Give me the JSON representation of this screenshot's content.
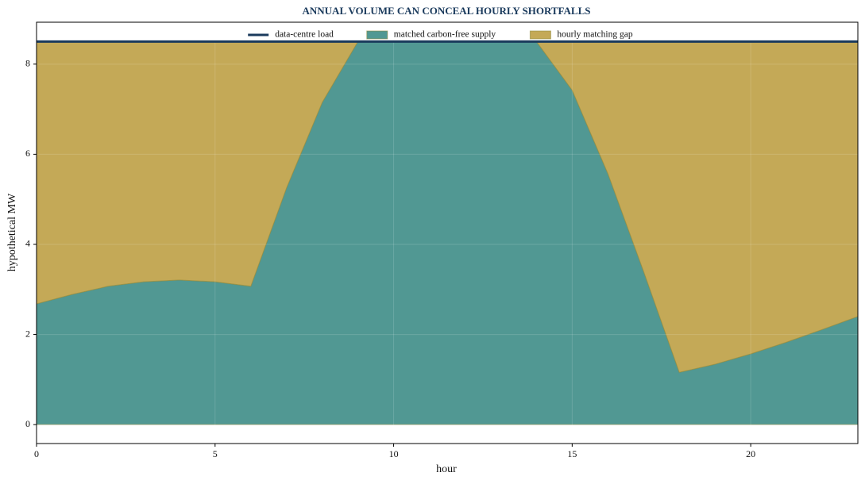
{
  "chart_data": {
    "type": "area",
    "title": "ANNUAL VOLUME CAN CONCEAL HOURLY SHORTFALLS",
    "xlabel": "hour",
    "ylabel": "hypothetical MW",
    "x": [
      0,
      1,
      2,
      3,
      4,
      5,
      6,
      7,
      8,
      9,
      10,
      11,
      12,
      13,
      14,
      15,
      16,
      17,
      18,
      19,
      20,
      21,
      22,
      23
    ],
    "series": [
      {
        "name": "data-centre load",
        "type": "line",
        "color": "#1a3a5c",
        "values": [
          8.5,
          8.5,
          8.5,
          8.5,
          8.5,
          8.5,
          8.5,
          8.5,
          8.5,
          8.5,
          8.5,
          8.5,
          8.5,
          8.5,
          8.5,
          8.5,
          8.5,
          8.5,
          8.5,
          8.5,
          8.5,
          8.5,
          8.5,
          8.5
        ]
      },
      {
        "name": "matched carbon-free supply",
        "type": "area",
        "color": "#519893",
        "values": [
          2.68,
          2.89,
          3.07,
          3.17,
          3.21,
          3.17,
          3.07,
          5.25,
          7.15,
          8.5,
          8.5,
          8.5,
          8.5,
          8.5,
          8.5,
          7.42,
          5.57,
          3.4,
          1.16,
          1.34,
          1.57,
          1.83,
          2.11,
          2.4
        ]
      },
      {
        "name": "hourly matching gap",
        "type": "area",
        "color": "#c4a957",
        "values": [
          5.82,
          5.61,
          5.43,
          5.33,
          5.29,
          5.33,
          5.43,
          3.25,
          1.35,
          0,
          0,
          0,
          0,
          0,
          0,
          1.08,
          2.93,
          5.1,
          7.34,
          7.16,
          6.93,
          6.67,
          6.39,
          6.1
        ]
      }
    ],
    "xlim": [
      0,
      23
    ],
    "xticks": [
      0,
      5,
      10,
      15,
      20
    ],
    "ylim": [
      -0.42,
      8.93
    ],
    "yticks": [
      0,
      2,
      4,
      6,
      8
    ],
    "grid": true,
    "legend": "top"
  }
}
